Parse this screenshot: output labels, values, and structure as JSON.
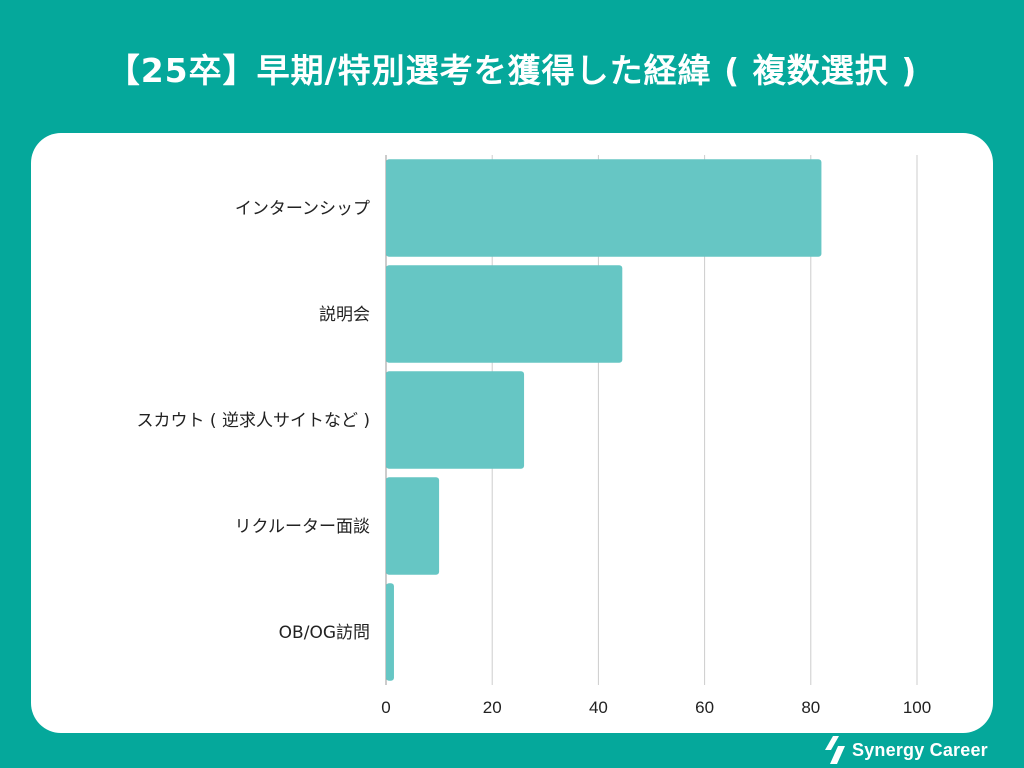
{
  "title": "【25卒】早期/特別選考を獲得した経緯 ( 複数選択 )",
  "brand": {
    "name": "Synergy Career",
    "icon": "synergy-logo-icon"
  },
  "colors": {
    "background": "#05a89b",
    "bar": "#66c6c4",
    "grid": "#cccccc",
    "text": "#222222"
  },
  "chart_data": {
    "type": "bar",
    "orientation": "horizontal",
    "categories": [
      "インターンシップ",
      "説明会",
      "スカウト ( 逆求人サイトなど )",
      "リクルーター面談",
      "OB/OG訪問"
    ],
    "values": [
      82,
      44.5,
      26,
      10,
      1.5
    ],
    "xlim": [
      0,
      100
    ],
    "xticks": [
      0,
      20,
      40,
      60,
      80,
      100
    ],
    "grid": true,
    "legend": "none"
  }
}
